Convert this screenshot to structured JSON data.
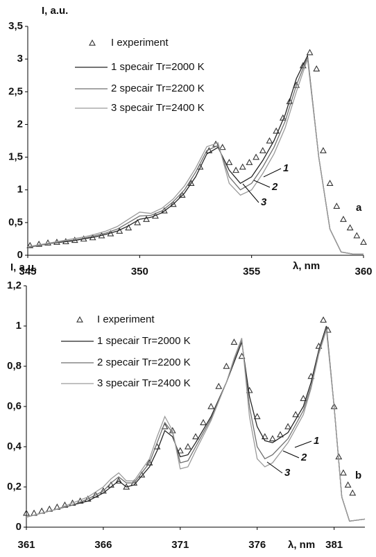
{
  "chart_data": [
    {
      "type": "line",
      "panel_label": "a",
      "y_label": "I, a.u.",
      "x_label": "λ, nm",
      "xlim": [
        345,
        360
      ],
      "xticks": [
        345,
        350,
        355,
        360
      ],
      "ylim": [
        0,
        3.5
      ],
      "yticks": [
        0,
        {
          "value": 0.5,
          "label": "0,5"
        },
        1,
        {
          "value": 1.5,
          "label": "1,5"
        },
        2,
        {
          "value": 2.5,
          "label": "2,5"
        },
        3,
        {
          "value": 3.5,
          "label": "3,5"
        }
      ],
      "legend": "upper left",
      "annotations": [
        "1",
        "2",
        "3"
      ],
      "series": [
        {
          "name": "I experiment",
          "type": "scatter",
          "marker": "triangle",
          "color": "#333333",
          "x": [
            345.1,
            345.5,
            345.9,
            346.3,
            346.7,
            347.1,
            347.5,
            347.9,
            348.3,
            348.7,
            349.1,
            349.5,
            349.9,
            350.3,
            350.7,
            351.1,
            351.5,
            351.9,
            352.3,
            352.7,
            353.1,
            353.4,
            353.7,
            354.0,
            354.3,
            354.6,
            354.9,
            355.2,
            355.5,
            355.8,
            356.1,
            356.4,
            356.7,
            357.0,
            357.3,
            357.6,
            357.9,
            358.2,
            358.5,
            358.8,
            359.1,
            359.4,
            359.7,
            360.0
          ],
          "values": [
            0.15,
            0.17,
            0.19,
            0.2,
            0.21,
            0.23,
            0.25,
            0.27,
            0.3,
            0.33,
            0.37,
            0.42,
            0.5,
            0.55,
            0.6,
            0.68,
            0.78,
            0.92,
            1.1,
            1.35,
            1.6,
            1.7,
            1.65,
            1.42,
            1.3,
            1.35,
            1.42,
            1.5,
            1.6,
            1.75,
            1.9,
            2.1,
            2.35,
            2.6,
            2.9,
            3.1,
            2.85,
            1.6,
            1.1,
            0.75,
            0.55,
            0.42,
            0.3,
            0.2
          ]
        },
        {
          "name": "1 specair Tr=2000 K",
          "color": "#222222",
          "x": [
            345,
            345.5,
            346,
            346.5,
            347,
            347.5,
            348,
            348.5,
            349,
            349.5,
            350,
            350.5,
            351,
            351.5,
            352,
            352.5,
            353,
            353.5,
            354,
            354.5,
            355,
            355.5,
            356,
            356.5,
            357,
            357.5,
            358,
            358.5,
            359,
            359.5,
            360
          ],
          "values": [
            0.12,
            0.15,
            0.18,
            0.2,
            0.22,
            0.25,
            0.28,
            0.32,
            0.37,
            0.45,
            0.55,
            0.58,
            0.65,
            0.78,
            0.95,
            1.2,
            1.55,
            1.65,
            1.3,
            1.1,
            1.2,
            1.45,
            1.75,
            2.15,
            2.7,
            3.05,
            1.5,
            0.4,
            0.05,
            0.02,
            0.02
          ]
        },
        {
          "name": "2 specair Tr=2200 K",
          "color": "#6f6f6f",
          "x": [
            345,
            345.5,
            346,
            346.5,
            347,
            347.5,
            348,
            348.5,
            349,
            349.5,
            350,
            350.5,
            351,
            351.5,
            352,
            352.5,
            353,
            353.5,
            354,
            354.5,
            355,
            355.5,
            356,
            356.5,
            357,
            357.5,
            358,
            358.5,
            359,
            359.5,
            360
          ],
          "values": [
            0.12,
            0.15,
            0.18,
            0.21,
            0.23,
            0.26,
            0.3,
            0.34,
            0.4,
            0.5,
            0.6,
            0.61,
            0.68,
            0.82,
            1.0,
            1.27,
            1.6,
            1.68,
            1.2,
            1.0,
            1.1,
            1.35,
            1.65,
            2.05,
            2.6,
            3.03,
            1.5,
            0.4,
            0.05,
            0.02,
            0.02
          ]
        },
        {
          "name": "3 specair Tr=2400 K",
          "color": "#9a9a9a",
          "x": [
            345,
            345.5,
            346,
            346.5,
            347,
            347.5,
            348,
            348.5,
            349,
            349.5,
            350,
            350.5,
            351,
            351.5,
            352,
            352.5,
            353,
            353.5,
            354,
            354.5,
            355,
            355.5,
            356,
            356.5,
            357,
            357.5,
            358,
            358.5,
            359,
            359.5,
            360
          ],
          "values": [
            0.13,
            0.16,
            0.19,
            0.22,
            0.25,
            0.28,
            0.32,
            0.37,
            0.44,
            0.55,
            0.66,
            0.64,
            0.72,
            0.86,
            1.06,
            1.33,
            1.66,
            1.72,
            1.1,
            0.92,
            1.0,
            1.25,
            1.55,
            1.95,
            2.5,
            3.0,
            1.5,
            0.4,
            0.05,
            0.02,
            0.02
          ]
        }
      ]
    },
    {
      "type": "line",
      "panel_label": "b",
      "y_label": "I, a.u.",
      "x_label": "λ, nm",
      "xlim": [
        361,
        383
      ],
      "xticks": [
        361,
        366,
        371,
        376,
        381
      ],
      "ylim": [
        0,
        1.2
      ],
      "yticks": [
        0,
        {
          "value": 0.2,
          "label": "0,2"
        },
        {
          "value": 0.4,
          "label": "0,4"
        },
        {
          "value": 0.6,
          "label": "0,6"
        },
        {
          "value": 0.8,
          "label": "0,8"
        },
        1,
        {
          "value": 1.2,
          "label": "1,2"
        }
      ],
      "legend": "upper left",
      "annotations": [
        "1",
        "2",
        "3"
      ],
      "series": [
        {
          "name": "I experiment",
          "type": "scatter",
          "marker": "triangle",
          "color": "#333333",
          "x": [
            361,
            361.5,
            362,
            362.5,
            363,
            363.5,
            364,
            364.5,
            365,
            365.5,
            366,
            366.5,
            367,
            367.5,
            368,
            368.5,
            369,
            369.5,
            370,
            370.5,
            371,
            371.5,
            372,
            372.5,
            373,
            373.5,
            374,
            374.5,
            375,
            375.5,
            376,
            376.5,
            377,
            377.5,
            378,
            378.5,
            379,
            379.5,
            380,
            380.3,
            380.6,
            381,
            381.3,
            381.6,
            381.9,
            382.2
          ],
          "values": [
            0.07,
            0.07,
            0.08,
            0.09,
            0.1,
            0.11,
            0.12,
            0.13,
            0.14,
            0.16,
            0.18,
            0.21,
            0.23,
            0.2,
            0.22,
            0.26,
            0.32,
            0.4,
            0.5,
            0.48,
            0.38,
            0.4,
            0.45,
            0.52,
            0.6,
            0.7,
            0.8,
            0.92,
            0.85,
            0.68,
            0.55,
            0.45,
            0.44,
            0.46,
            0.5,
            0.56,
            0.64,
            0.75,
            0.9,
            1.03,
            0.98,
            0.6,
            0.35,
            0.27,
            0.21,
            0.17
          ]
        },
        {
          "name": "1 specair Tr=2000 K",
          "color": "#222222",
          "x": [
            361,
            362,
            363,
            364,
            365,
            366,
            366.5,
            367,
            367.5,
            368,
            369,
            369.5,
            370,
            370.5,
            371,
            371.5,
            372,
            373,
            374,
            374.5,
            375,
            375.5,
            376,
            376.5,
            377,
            378,
            379,
            379.5,
            380,
            380.5,
            381,
            381.5,
            382,
            383
          ],
          "values": [
            0.05,
            0.07,
            0.09,
            0.11,
            0.13,
            0.17,
            0.2,
            0.23,
            0.2,
            0.21,
            0.3,
            0.38,
            0.48,
            0.45,
            0.35,
            0.36,
            0.42,
            0.55,
            0.72,
            0.82,
            0.92,
            0.65,
            0.5,
            0.43,
            0.42,
            0.47,
            0.6,
            0.72,
            0.88,
            1.0,
            0.6,
            0.15,
            0.03,
            0.04
          ]
        },
        {
          "name": "2 specair Tr=2200 K",
          "color": "#6f6f6f",
          "x": [
            361,
            362,
            363,
            364,
            365,
            366,
            366.5,
            367,
            367.5,
            368,
            369,
            369.5,
            370,
            370.5,
            371,
            371.5,
            372,
            373,
            374,
            374.5,
            375,
            375.5,
            376,
            376.5,
            377,
            378,
            379,
            379.5,
            380,
            380.5,
            381,
            381.5,
            382,
            383
          ],
          "values": [
            0.05,
            0.07,
            0.09,
            0.11,
            0.14,
            0.18,
            0.22,
            0.25,
            0.22,
            0.22,
            0.32,
            0.42,
            0.52,
            0.47,
            0.32,
            0.33,
            0.4,
            0.54,
            0.72,
            0.83,
            0.93,
            0.6,
            0.4,
            0.34,
            0.36,
            0.44,
            0.58,
            0.7,
            0.87,
            0.99,
            0.6,
            0.15,
            0.03,
            0.04
          ]
        },
        {
          "name": "3 specair Tr=2400 K",
          "color": "#9a9a9a",
          "x": [
            361,
            362,
            363,
            364,
            365,
            366,
            366.5,
            367,
            367.5,
            368,
            369,
            369.5,
            370,
            370.5,
            371,
            371.5,
            372,
            373,
            374,
            374.5,
            375,
            375.5,
            376,
            376.5,
            377,
            378,
            379,
            379.5,
            380,
            380.5,
            381,
            381.5,
            382,
            383
          ],
          "values": [
            0.05,
            0.07,
            0.09,
            0.12,
            0.15,
            0.2,
            0.24,
            0.27,
            0.23,
            0.23,
            0.34,
            0.45,
            0.55,
            0.48,
            0.29,
            0.3,
            0.38,
            0.53,
            0.72,
            0.84,
            0.94,
            0.55,
            0.34,
            0.3,
            0.32,
            0.42,
            0.56,
            0.69,
            0.86,
            0.98,
            0.6,
            0.15,
            0.03,
            0.04
          ]
        }
      ]
    }
  ]
}
